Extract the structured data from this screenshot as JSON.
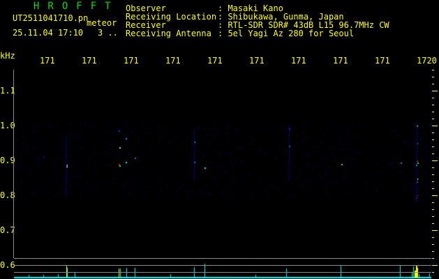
{
  "header": {
    "logo": "HROFFT",
    "filename": "UT2511041710.pn",
    "mode": "meteor",
    "datetime": "25.11.04 17:10",
    "count": "3 .."
  },
  "station": [
    {
      "label": "Observer",
      "value": ": Masaki Kano"
    },
    {
      "label": "Receiving Location",
      "value": ": Shibukawa, Gunma, Japan"
    },
    {
      "label": "Receiver",
      "value": ": RTL-SDR SDR# 43dB L15 96.7MHz CW"
    },
    {
      "label": "Receiving Antenna",
      "value": ": 5el Yagi Az 280 for Seoul"
    }
  ],
  "axis": {
    "unit": "kHz",
    "time_ticks": [
      "1711",
      "1712",
      "1713",
      "1714",
      "1715",
      "1716",
      "1717",
      "1718",
      "1719",
      "1720"
    ],
    "freq_ticks": [
      "1.1",
      "1.0",
      "0.9",
      "0.8",
      "0.7",
      "0.6"
    ]
  },
  "colors": {
    "text": "#ffff00",
    "logo": "#00e000",
    "signal": "#00ffff"
  }
}
